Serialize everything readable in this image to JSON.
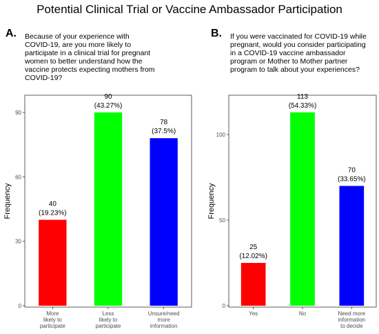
{
  "title": "Potential Clinical Trial or Vaccine Ambassador Participation",
  "chart_data": [
    {
      "type": "bar",
      "panel": "A.",
      "question": "Because of your experience with\nCOVID-19, are you more likely to\nparticipate in a clinical trial for pregnant\nwomen to better understand how the\nvaccine protects expecting mothers from\nCOVID-19?",
      "categories": [
        [
          "More",
          "likely to",
          "participate"
        ],
        [
          "Less",
          "likely to",
          "participate"
        ],
        [
          "Unsure/need",
          "more",
          "information"
        ]
      ],
      "values": [
        40,
        90,
        78
      ],
      "labels": [
        "(19.23%)",
        "(43.27%)",
        "(37.5%)"
      ],
      "colors": [
        "#ff0000",
        "#00ff00",
        "#0000ff"
      ],
      "ylabel": "Frequency",
      "yticks": [
        0,
        30,
        60,
        90
      ],
      "ylim": [
        0,
        98
      ],
      "grid": false
    },
    {
      "type": "bar",
      "panel": "B.",
      "question": "If you were vaccinated for COVID-19 while\npregnant, would you consider participating\nin a COVID-19 vaccine ambassador\nprogram or Mother to Mother partner\nprogram to talk about your experiences?",
      "categories": [
        [
          "Yes"
        ],
        [
          "No"
        ],
        [
          "Need more",
          "information",
          "to decide"
        ]
      ],
      "values": [
        25,
        113,
        70
      ],
      "labels": [
        "(12.02%)",
        "(54.33%)",
        "(33.65%)"
      ],
      "colors": [
        "#ff0000",
        "#00ff00",
        "#0000ff"
      ],
      "ylabel": "Frequency",
      "yticks": [
        0,
        50,
        100
      ],
      "ylim": [
        0,
        123
      ],
      "grid": false
    }
  ]
}
